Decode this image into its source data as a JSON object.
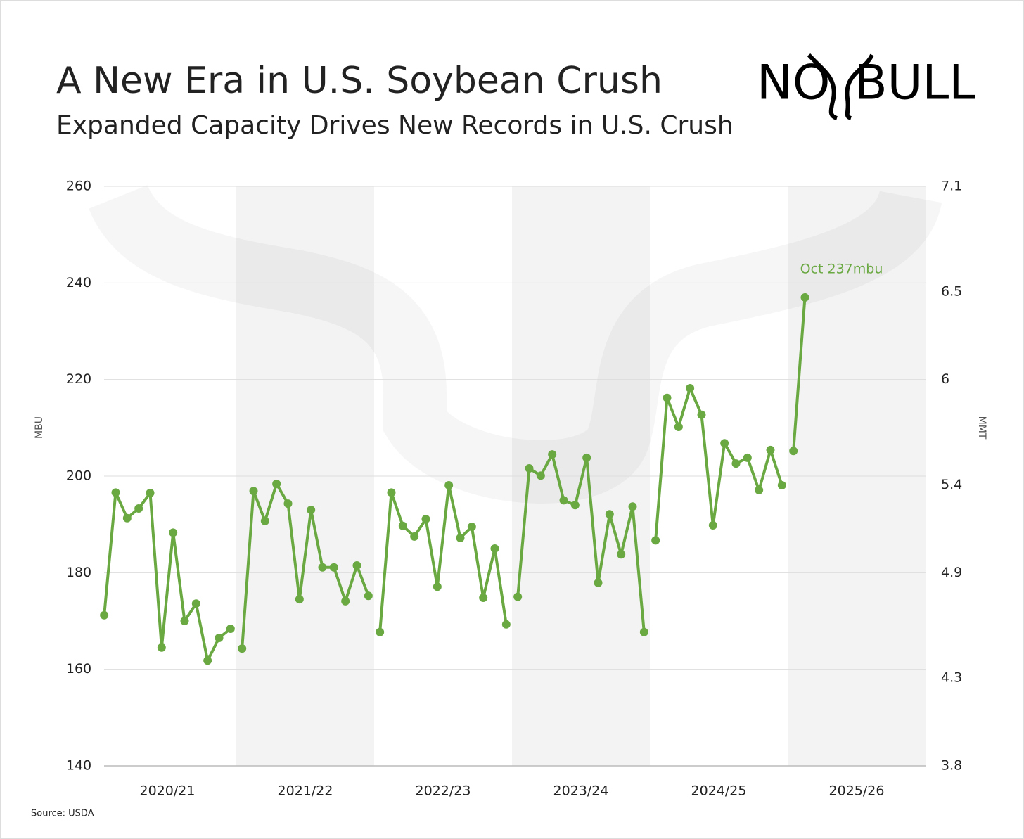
{
  "chart_data": {
    "type": "line",
    "title": "A New Era in U.S. Soybean Crush",
    "subtitle": "Expanded Capacity Drives New Records in U.S. Crush",
    "logo": [
      "NO",
      "BULL"
    ],
    "source": "Source: USDA",
    "ylabel": "MBU",
    "y2label": "MMT",
    "annotation": "Oct 237mbu",
    "color": "#6aa842",
    "categories": [
      "2020/21",
      "2021/22",
      "2022/23",
      "2023/24",
      "2024/25",
      "2025/26"
    ],
    "values": [
      [
        171.2,
        196.6,
        191.3,
        193.3,
        196.5,
        164.5,
        188.3,
        170.0,
        173.6,
        161.8,
        166.5,
        168.4
      ],
      [
        164.3,
        196.9,
        190.7,
        198.4,
        194.3,
        174.5,
        193.0,
        181.1,
        181.1,
        174.1,
        181.5,
        175.2
      ],
      [
        167.7,
        196.6,
        189.7,
        187.5,
        191.1,
        177.1,
        198.1,
        187.2,
        189.5,
        174.8,
        185.0,
        169.3
      ],
      [
        175.0,
        201.6,
        200.1,
        204.5,
        195.0,
        194.0,
        203.8,
        177.9,
        192.1,
        183.8,
        193.7,
        167.7
      ],
      [
        186.7,
        216.2,
        210.2,
        218.2,
        212.7,
        189.8,
        206.8,
        202.6,
        203.8,
        197.1,
        205.4,
        198.1
      ],
      [
        205.2,
        237
      ]
    ],
    "ylim": [
      140,
      260
    ],
    "yticks": [
      140,
      160,
      180,
      200,
      220,
      240,
      260
    ],
    "y2lim": [
      3.8,
      7.1
    ],
    "y2ticks": [
      3.8,
      4.3,
      4.9,
      5.4,
      6.0,
      6.5,
      7.1
    ],
    "grid": true
  }
}
